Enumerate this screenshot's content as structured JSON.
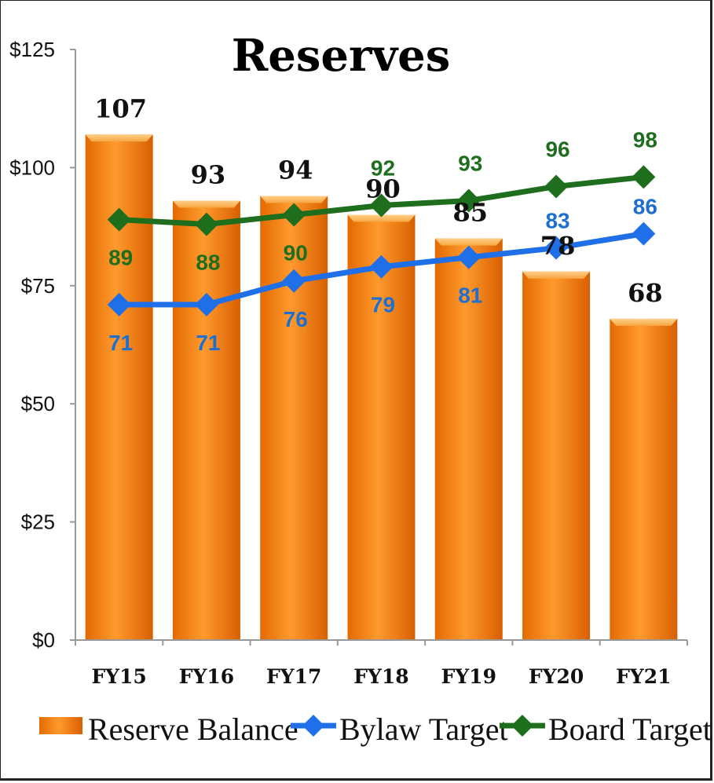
{
  "chart_data": {
    "type": "bar",
    "title": "Reserves",
    "categories": [
      "FY15",
      "FY16",
      "FY17",
      "FY18",
      "FY19",
      "FY20",
      "FY21"
    ],
    "series": [
      {
        "name": "Reserve Balance",
        "kind": "bar",
        "values": [
          107,
          93,
          94,
          90,
          85,
          78,
          68
        ],
        "color": "#f07d10"
      },
      {
        "name": "Bylaw Target",
        "kind": "line",
        "values": [
          71,
          71,
          76,
          79,
          81,
          83,
          86
        ],
        "color": "#1f6fe8"
      },
      {
        "name": "Board Target",
        "kind": "line",
        "values": [
          89,
          88,
          90,
          92,
          93,
          96,
          98
        ],
        "color": "#1e6e1e"
      }
    ],
    "yticks": [
      "$0",
      "$25",
      "$50",
      "$75",
      "$100",
      "$125"
    ],
    "ylim": [
      0,
      125
    ],
    "legend_position": "bottom",
    "grid": false
  }
}
